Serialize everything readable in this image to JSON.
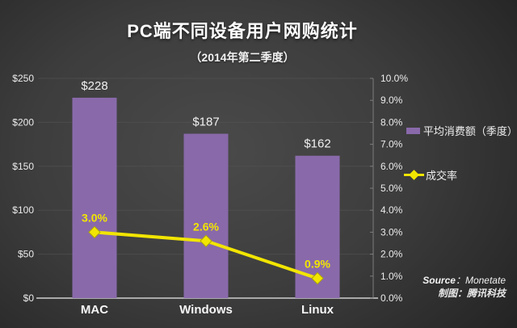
{
  "chart_data": {
    "type": "bar+line combo",
    "title": "PC端不同设备用户网购统计",
    "subtitle": "（2014年第二季度）",
    "categories": [
      "MAC",
      "Windows",
      "Linux"
    ],
    "series": [
      {
        "name": "平均消费额（季度）",
        "type": "bar",
        "axis": "left",
        "values": [
          228,
          187,
          162
        ],
        "labels": [
          "$228",
          "$187",
          "$162"
        ],
        "color": "#8969AA"
      },
      {
        "name": "成交率",
        "type": "line",
        "axis": "right",
        "values": [
          3.0,
          2.6,
          0.9
        ],
        "labels": [
          "3.0%",
          "2.6%",
          "0.9%"
        ],
        "color": "#F2E500"
      }
    ],
    "left_axis": {
      "min": 0,
      "max": 250,
      "step": 50,
      "ticks": [
        "$0",
        "$50",
        "$100",
        "$150",
        "$200",
        "$250"
      ]
    },
    "right_axis": {
      "min": 0,
      "max": 10,
      "step": 1,
      "ticks": [
        "0.0%",
        "1.0%",
        "2.0%",
        "3.0%",
        "4.0%",
        "5.0%",
        "6.0%",
        "7.0%",
        "8.0%",
        "9.0%",
        "10.0%"
      ]
    },
    "grid": true,
    "legend_position": "right"
  },
  "footer": {
    "source_label": "Source",
    "source_rest": "：Monetate",
    "credit": "制图：腾讯科技"
  },
  "colors": {
    "bar": "#8969AA",
    "line": "#F2E500",
    "axis_text": "#ececec",
    "baseline": "#a9a9a9",
    "gridline": "#555555"
  }
}
